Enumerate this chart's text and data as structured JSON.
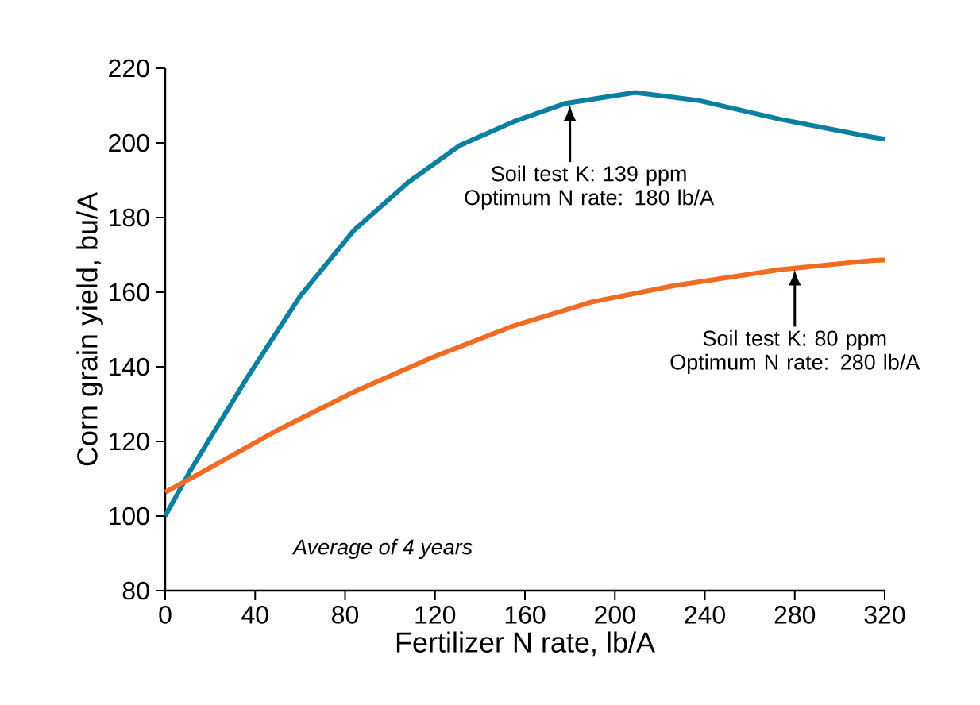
{
  "chart_data": {
    "type": "line",
    "xlabel": "Fertilizer N rate, lb/A",
    "ylabel": "Corn grain yield, bu/A",
    "xlim": [
      0,
      320
    ],
    "ylim": [
      80,
      220
    ],
    "xticks": [
      0,
      40,
      80,
      120,
      160,
      200,
      240,
      280,
      320
    ],
    "yticks": [
      80,
      100,
      120,
      140,
      160,
      180,
      200,
      220
    ],
    "grid": false,
    "marker": "none",
    "line_style": "solid",
    "series": [
      {
        "color": "#0a7fa0",
        "x": [
          0,
          11,
          37,
          60,
          84,
          108,
          131,
          155,
          178,
          209,
          237,
          273,
          313,
          320
        ],
        "values": [
          100,
          112,
          137.6,
          158.9,
          176.6,
          189.4,
          199.3,
          205.7,
          210.6,
          213.5,
          211.4,
          206.4,
          201.7,
          201
        ]
      },
      {
        "color": "#f26b22",
        "x": [
          0,
          13,
          49,
          84,
          120,
          155,
          190,
          226,
          273,
          315,
          320
        ],
        "values": [
          106.4,
          110.6,
          122.7,
          133.3,
          142.8,
          151,
          157.4,
          161.7,
          166,
          168.5,
          168.6
        ]
      }
    ],
    "annotations": [
      {
        "text": "Soil test K: 139 ppm Optimum N rate: 180 lb/A",
        "x": 180,
        "y": 210.6
      },
      {
        "text": "Soil test K: 80 ppm Optimum N rate: 280 lb/A",
        "x": 280,
        "y": 166.5
      },
      "*Average of 4 years*"
    ]
  }
}
